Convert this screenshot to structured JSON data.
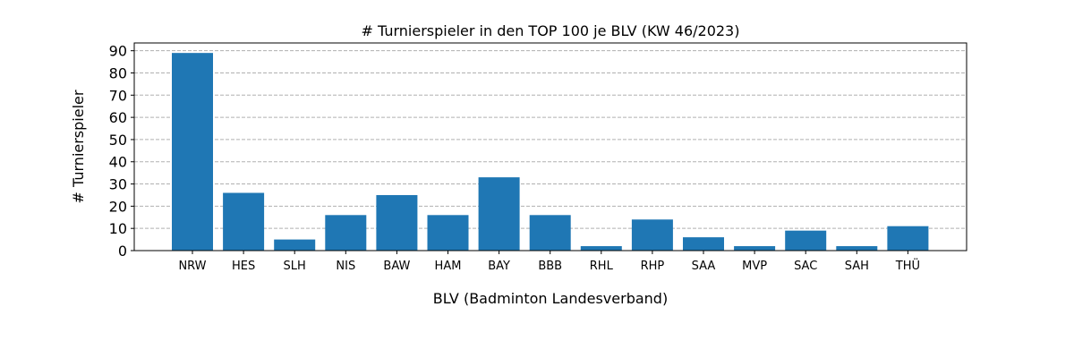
{
  "chart_data": {
    "type": "bar",
    "title": "# Turnierspieler in den TOP 100 je BLV (KW 46/2023)",
    "xlabel": "BLV (Badminton Landesverband)",
    "ylabel": "# Turnierspieler",
    "categories": [
      "NRW",
      "HES",
      "SLH",
      "NIS",
      "BAW",
      "HAM",
      "BAY",
      "BBB",
      "RHL",
      "RHP",
      "SAA",
      "MVP",
      "SAC",
      "SAH",
      "THÜ"
    ],
    "values": [
      89,
      26,
      5,
      16,
      25,
      16,
      33,
      16,
      2,
      14,
      6,
      2,
      9,
      2,
      11
    ],
    "ylim": [
      0,
      93.5
    ],
    "yticks": [
      0,
      10,
      20,
      30,
      40,
      50,
      60,
      70,
      80,
      90
    ],
    "grid": "y-dashed",
    "bar_color": "#1f77b4"
  }
}
